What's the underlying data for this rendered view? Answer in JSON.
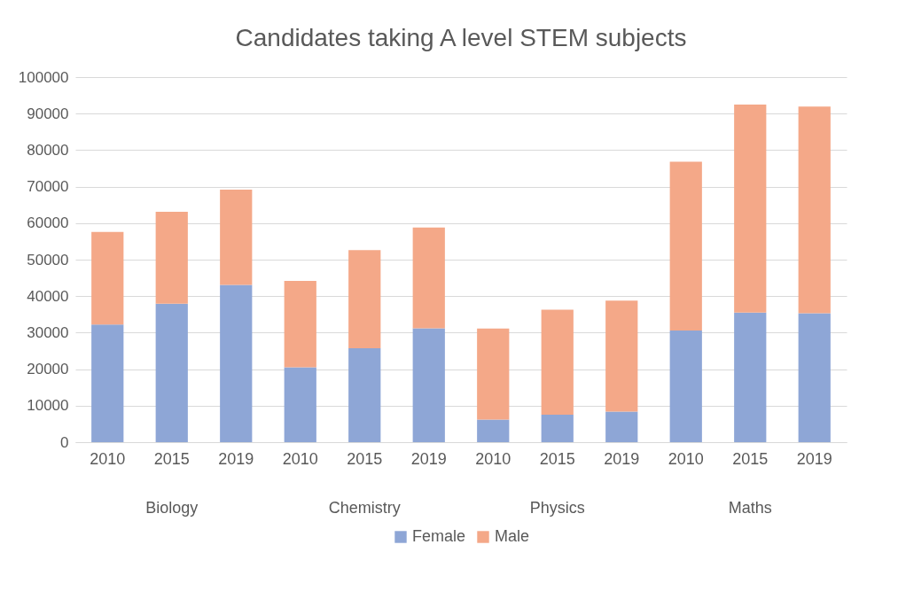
{
  "chart_data": {
    "type": "bar",
    "title": "Candidates taking A level STEM subjects",
    "categories": [
      "2010",
      "2015",
      "2019",
      "2010",
      "2015",
      "2019",
      "2010",
      "2015",
      "2019",
      "2010",
      "2015",
      "2019"
    ],
    "series": [
      {
        "name": "Female",
        "color": "#8ea6d6",
        "values": [
          32200,
          37900,
          43100,
          20500,
          25700,
          31200,
          6200,
          7500,
          8400,
          30600,
          35500,
          35300
        ]
      },
      {
        "name": "Male",
        "color": "#f4a888",
        "values": [
          25400,
          25200,
          26100,
          23700,
          26900,
          27600,
          24900,
          28800,
          30400,
          46200,
          57000,
          56600
        ]
      }
    ],
    "stacked": true,
    "ylim": [
      0,
      100000
    ],
    "yticks": [
      0,
      10000,
      20000,
      30000,
      40000,
      50000,
      60000,
      70000,
      80000,
      90000,
      100000
    ],
    "grid": "y",
    "legend": "bottom",
    "annotations": [
      "Biology",
      "Chemistry",
      "Physics",
      "Maths"
    ]
  }
}
